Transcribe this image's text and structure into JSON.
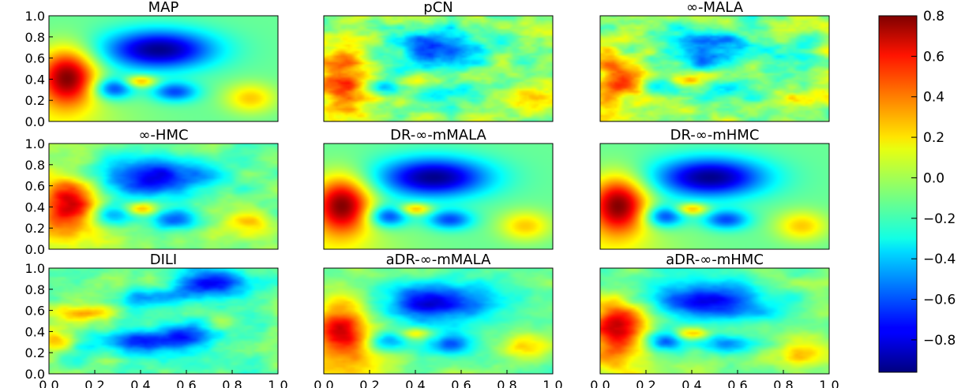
{
  "chart_data": {
    "type": "heatmap",
    "grid": false,
    "xlim": [
      0.0,
      1.0
    ],
    "ylim": [
      0.0,
      1.0
    ],
    "x_tick_labels": [
      "0.0",
      "0.2",
      "0.4",
      "0.6",
      "0.8",
      "1.0"
    ],
    "y_tick_labels": [
      "0.0",
      "0.2",
      "0.4",
      "0.6",
      "0.8",
      "1.0"
    ],
    "panels": [
      {
        "title": "MAP",
        "kind": "smooth"
      },
      {
        "title": "pCN",
        "kind": "noisy"
      },
      {
        "title": "∞-MALA",
        "kind": "noisy"
      },
      {
        "title": "∞-HMC",
        "kind": "rough"
      },
      {
        "title": "DR-∞-mMALA",
        "kind": "smooth"
      },
      {
        "title": "DR-∞-mHMC",
        "kind": "smooth"
      },
      {
        "title": "DILI",
        "kind": "dili"
      },
      {
        "title": "aDR-∞-mMALA",
        "kind": "rough"
      },
      {
        "title": "aDR-∞-mHMC",
        "kind": "rough"
      }
    ],
    "colorbar": {
      "colormap": "jet",
      "range": [
        -0.96,
        0.8
      ],
      "tick_values": [
        0.8,
        0.6,
        0.4,
        0.2,
        0.0,
        -0.2,
        -0.4,
        -0.6,
        -0.8
      ],
      "tick_labels": [
        "0.8",
        "0.6",
        "0.4",
        "0.2",
        "0.0",
        "−0.2",
        "−0.4",
        "−0.6",
        "−0.8"
      ]
    }
  }
}
